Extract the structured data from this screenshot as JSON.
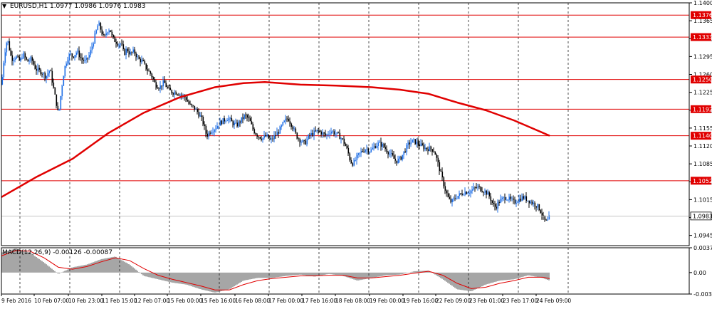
{
  "header": {
    "arrow_glyph": "▼",
    "symbol_text": "EURUSD,H1 1.0977 1.0986 1.0976 1.0983"
  },
  "macd": {
    "label": "MACD(12,26,9) -0.00126 -0.00087",
    "levels": [
      0.00371,
      0.0,
      -0.00321
    ],
    "level_labels": [
      "0.00371",
      "0.00",
      "-0.00321"
    ]
  },
  "colors": {
    "bull": "#1e6ee6",
    "bear": "#000000",
    "ma": "#e00000",
    "hline": "#e00000",
    "macd_hist": "#808080",
    "macd_signal": "#e00000",
    "grid": "#000000",
    "price_label_bg": "#e00000",
    "current_label_bg": "#ffffff"
  },
  "chart_data": {
    "type": "candlestick",
    "symbol": "EURUSD,H1",
    "ylim": [
      1.0925,
      1.14
    ],
    "y_ticks": [
      1.14,
      1.1365,
      1.133,
      1.1295,
      1.126,
      1.1225,
      1.119,
      1.1155,
      1.112,
      1.1085,
      1.105,
      1.1015,
      1.098,
      1.0945
    ],
    "y_tick_labels": [
      "1.1400",
      "1.1365",
      "1.1330",
      "1.1295",
      "1.1260",
      "1.1225",
      "1.1190",
      "1.1155",
      "1.1120",
      "1.1085",
      "1.1050",
      "1.1015",
      "1.0980",
      "1.0945"
    ],
    "x_labels": [
      "9 Feb 2016",
      "10 Feb 07:00",
      "10 Feb 23:00",
      "11 Feb 15:00",
      "12 Feb 07:00",
      "15 Feb 00:00",
      "15 Feb 16:00",
      "16 Feb 08:00",
      "17 Feb 00:00",
      "17 Feb 16:00",
      "18 Feb 08:00",
      "19 Feb 00:00",
      "19 Feb 16:00",
      "22 Feb 09:00",
      "23 Feb 01:00",
      "23 Feb 17:00",
      "24 Feb 09:00"
    ],
    "horizontal_levels": [
      {
        "value": 1.1376,
        "label": "1.1376"
      },
      {
        "value": 1.1333,
        "label": "1.1333"
      },
      {
        "value": 1.125,
        "label": "1.1250"
      },
      {
        "value": 1.1192,
        "label": "1.1192"
      },
      {
        "value": 1.114,
        "label": "1.1140"
      },
      {
        "value": 1.1052,
        "label": "1.1052"
      }
    ],
    "current_price": {
      "value": 1.0983,
      "label": "1.0983"
    },
    "ohlc": {
      "open": 1.0977,
      "high": 1.0986,
      "low": 1.0976,
      "close": 1.0983
    },
    "price_path": [
      [
        0,
        1.124
      ],
      [
        4,
        1.13
      ],
      [
        8,
        1.133
      ],
      [
        14,
        1.129
      ],
      [
        20,
        1.1295
      ],
      [
        26,
        1.1285
      ],
      [
        30,
        1.13
      ],
      [
        36,
        1.1285
      ],
      [
        42,
        1.129
      ],
      [
        48,
        1.127
      ],
      [
        56,
        1.1265
      ],
      [
        62,
        1.1255
      ],
      [
        68,
        1.127
      ],
      [
        72,
        1.124
      ],
      [
        76,
        1.121
      ],
      [
        80,
        1.118
      ],
      [
        84,
        1.123
      ],
      [
        88,
        1.127
      ],
      [
        92,
        1.129
      ],
      [
        96,
        1.13
      ],
      [
        100,
        1.1295
      ],
      [
        106,
        1.1305
      ],
      [
        112,
        1.129
      ],
      [
        118,
        1.1285
      ],
      [
        124,
        1.13
      ],
      [
        128,
        1.132
      ],
      [
        132,
        1.134
      ],
      [
        136,
        1.136
      ],
      [
        140,
        1.1345
      ],
      [
        144,
        1.133
      ],
      [
        148,
        1.1345
      ],
      [
        152,
        1.135
      ],
      [
        156,
        1.133
      ],
      [
        160,
        1.1325
      ],
      [
        164,
        1.132
      ],
      [
        168,
        1.132
      ],
      [
        172,
        1.13
      ],
      [
        176,
        1.131
      ],
      [
        180,
        1.13
      ],
      [
        186,
        1.1305
      ],
      [
        192,
        1.129
      ],
      [
        198,
        1.1285
      ],
      [
        204,
        1.127
      ],
      [
        210,
        1.126
      ],
      [
        216,
        1.124
      ],
      [
        222,
        1.1235
      ],
      [
        228,
        1.1245
      ],
      [
        234,
        1.123
      ],
      [
        240,
        1.1225
      ],
      [
        246,
        1.1225
      ],
      [
        252,
        1.122
      ],
      [
        258,
        1.1215
      ],
      [
        264,
        1.12
      ],
      [
        270,
        1.1195
      ],
      [
        276,
        1.1185
      ],
      [
        282,
        1.117
      ],
      [
        288,
        1.114
      ],
      [
        294,
        1.115
      ],
      [
        300,
        1.1155
      ],
      [
        306,
        1.1165
      ],
      [
        312,
        1.117
      ],
      [
        318,
        1.1175
      ],
      [
        324,
        1.1165
      ],
      [
        330,
        1.116
      ],
      [
        336,
        1.117
      ],
      [
        342,
        1.118
      ],
      [
        348,
        1.117
      ],
      [
        354,
        1.115
      ],
      [
        360,
        1.114
      ],
      [
        366,
        1.1135
      ],
      [
        372,
        1.114
      ],
      [
        378,
        1.113
      ],
      [
        384,
        1.114
      ],
      [
        390,
        1.115
      ],
      [
        396,
        1.1165
      ],
      [
        402,
        1.1175
      ],
      [
        408,
        1.116
      ],
      [
        414,
        1.114
      ],
      [
        420,
        1.113
      ],
      [
        426,
        1.1125
      ],
      [
        432,
        1.114
      ],
      [
        438,
        1.1145
      ],
      [
        444,
        1.115
      ],
      [
        450,
        1.1145
      ],
      [
        456,
        1.114
      ],
      [
        462,
        1.115
      ],
      [
        468,
        1.1145
      ],
      [
        474,
        1.114
      ],
      [
        480,
        1.113
      ],
      [
        486,
        1.111
      ],
      [
        490,
        1.109
      ],
      [
        494,
        1.1085
      ],
      [
        500,
        1.11
      ],
      [
        506,
        1.111
      ],
      [
        512,
        1.1115
      ],
      [
        518,
        1.111
      ],
      [
        524,
        1.112
      ],
      [
        530,
        1.1125
      ],
      [
        536,
        1.112
      ],
      [
        542,
        1.111
      ],
      [
        548,
        1.11
      ],
      [
        554,
        1.109
      ],
      [
        560,
        1.1095
      ],
      [
        566,
        1.111
      ],
      [
        572,
        1.1125
      ],
      [
        578,
        1.113
      ],
      [
        584,
        1.1125
      ],
      [
        590,
        1.112
      ],
      [
        596,
        1.1115
      ],
      [
        602,
        1.1115
      ],
      [
        608,
        1.111
      ],
      [
        612,
        1.109
      ],
      [
        616,
        1.107
      ],
      [
        620,
        1.105
      ],
      [
        624,
        1.103
      ],
      [
        628,
        1.1015
      ],
      [
        632,
        1.101
      ],
      [
        638,
        1.102
      ],
      [
        644,
        1.1025
      ],
      [
        650,
        1.103
      ],
      [
        656,
        1.103
      ],
      [
        662,
        1.1035
      ],
      [
        668,
        1.104
      ],
      [
        674,
        1.1035
      ],
      [
        680,
        1.103
      ],
      [
        686,
        1.102
      ],
      [
        690,
        1.1005
      ],
      [
        694,
        1.1
      ],
      [
        698,
        1.101
      ],
      [
        702,
        1.1015
      ],
      [
        708,
        1.102
      ],
      [
        714,
        1.1015
      ],
      [
        720,
        1.101
      ],
      [
        726,
        1.1015
      ],
      [
        732,
        1.102
      ],
      [
        738,
        1.1015
      ],
      [
        744,
        1.101
      ],
      [
        750,
        1.1005
      ],
      [
        754,
        1.1
      ],
      [
        758,
        1.099
      ],
      [
        762,
        1.0975
      ],
      [
        766,
        1.097
      ],
      [
        770,
        1.0983
      ]
    ],
    "ma_path": [
      [
        0,
        1.102
      ],
      [
        50,
        1.106
      ],
      [
        100,
        1.1095
      ],
      [
        150,
        1.1145
      ],
      [
        200,
        1.1185
      ],
      [
        250,
        1.1215
      ],
      [
        300,
        1.1235
      ],
      [
        340,
        1.1243
      ],
      [
        370,
        1.1245
      ],
      [
        420,
        1.124
      ],
      [
        470,
        1.1238
      ],
      [
        520,
        1.1235
      ],
      [
        560,
        1.123
      ],
      [
        600,
        1.1222
      ],
      [
        640,
        1.1205
      ],
      [
        680,
        1.119
      ],
      [
        720,
        1.117
      ],
      [
        745,
        1.1155
      ],
      [
        770,
        1.114
      ]
    ],
    "macd_path": [
      [
        0,
        0.003
      ],
      [
        20,
        0.0036
      ],
      [
        40,
        0.003
      ],
      [
        60,
        0.0015
      ],
      [
        80,
        -0.0002
      ],
      [
        100,
        0.0008
      ],
      [
        120,
        0.0012
      ],
      [
        140,
        0.002
      ],
      [
        160,
        0.0024
      ],
      [
        180,
        0.0012
      ],
      [
        200,
        -0.0005
      ],
      [
        220,
        -0.001
      ],
      [
        240,
        -0.0015
      ],
      [
        260,
        -0.0018
      ],
      [
        280,
        -0.0025
      ],
      [
        300,
        -0.003
      ],
      [
        320,
        -0.0025
      ],
      [
        340,
        -0.0012
      ],
      [
        360,
        -0.0008
      ],
      [
        380,
        -0.0008
      ],
      [
        400,
        -0.0005
      ],
      [
        420,
        -0.0003
      ],
      [
        440,
        -0.0006
      ],
      [
        460,
        -0.0002
      ],
      [
        480,
        -0.0005
      ],
      [
        500,
        -0.0012
      ],
      [
        520,
        -0.0008
      ],
      [
        540,
        -0.0004
      ],
      [
        560,
        -0.0003
      ],
      [
        580,
        0.0002
      ],
      [
        600,
        0.0003
      ],
      [
        620,
        -0.001
      ],
      [
        640,
        -0.0025
      ],
      [
        660,
        -0.0028
      ],
      [
        680,
        -0.0018
      ],
      [
        700,
        -0.0012
      ],
      [
        720,
        -0.001
      ],
      [
        740,
        -0.0004
      ],
      [
        760,
        -0.0008
      ],
      [
        770,
        -0.0012
      ]
    ],
    "signal_path": [
      [
        0,
        0.0025
      ],
      [
        20,
        0.0033
      ],
      [
        40,
        0.0032
      ],
      [
        60,
        0.0022
      ],
      [
        80,
        0.0008
      ],
      [
        100,
        0.0005
      ],
      [
        120,
        0.0009
      ],
      [
        140,
        0.0016
      ],
      [
        160,
        0.0022
      ],
      [
        180,
        0.0018
      ],
      [
        200,
        0.0006
      ],
      [
        220,
        -0.0004
      ],
      [
        240,
        -0.001
      ],
      [
        260,
        -0.0015
      ],
      [
        280,
        -0.002
      ],
      [
        300,
        -0.0026
      ],
      [
        320,
        -0.0026
      ],
      [
        340,
        -0.0018
      ],
      [
        360,
        -0.0012
      ],
      [
        380,
        -0.0009
      ],
      [
        400,
        -0.0007
      ],
      [
        420,
        -0.0005
      ],
      [
        440,
        -0.0005
      ],
      [
        460,
        -0.0004
      ],
      [
        480,
        -0.0004
      ],
      [
        500,
        -0.0008
      ],
      [
        520,
        -0.0008
      ],
      [
        540,
        -0.0006
      ],
      [
        560,
        -0.0004
      ],
      [
        580,
        -0.0001
      ],
      [
        600,
        0.0002
      ],
      [
        620,
        -0.0004
      ],
      [
        640,
        -0.0016
      ],
      [
        660,
        -0.0024
      ],
      [
        680,
        -0.0022
      ],
      [
        700,
        -0.0016
      ],
      [
        720,
        -0.0012
      ],
      [
        740,
        -0.0007
      ],
      [
        760,
        -0.0007
      ],
      [
        770,
        -0.0009
      ]
    ]
  }
}
